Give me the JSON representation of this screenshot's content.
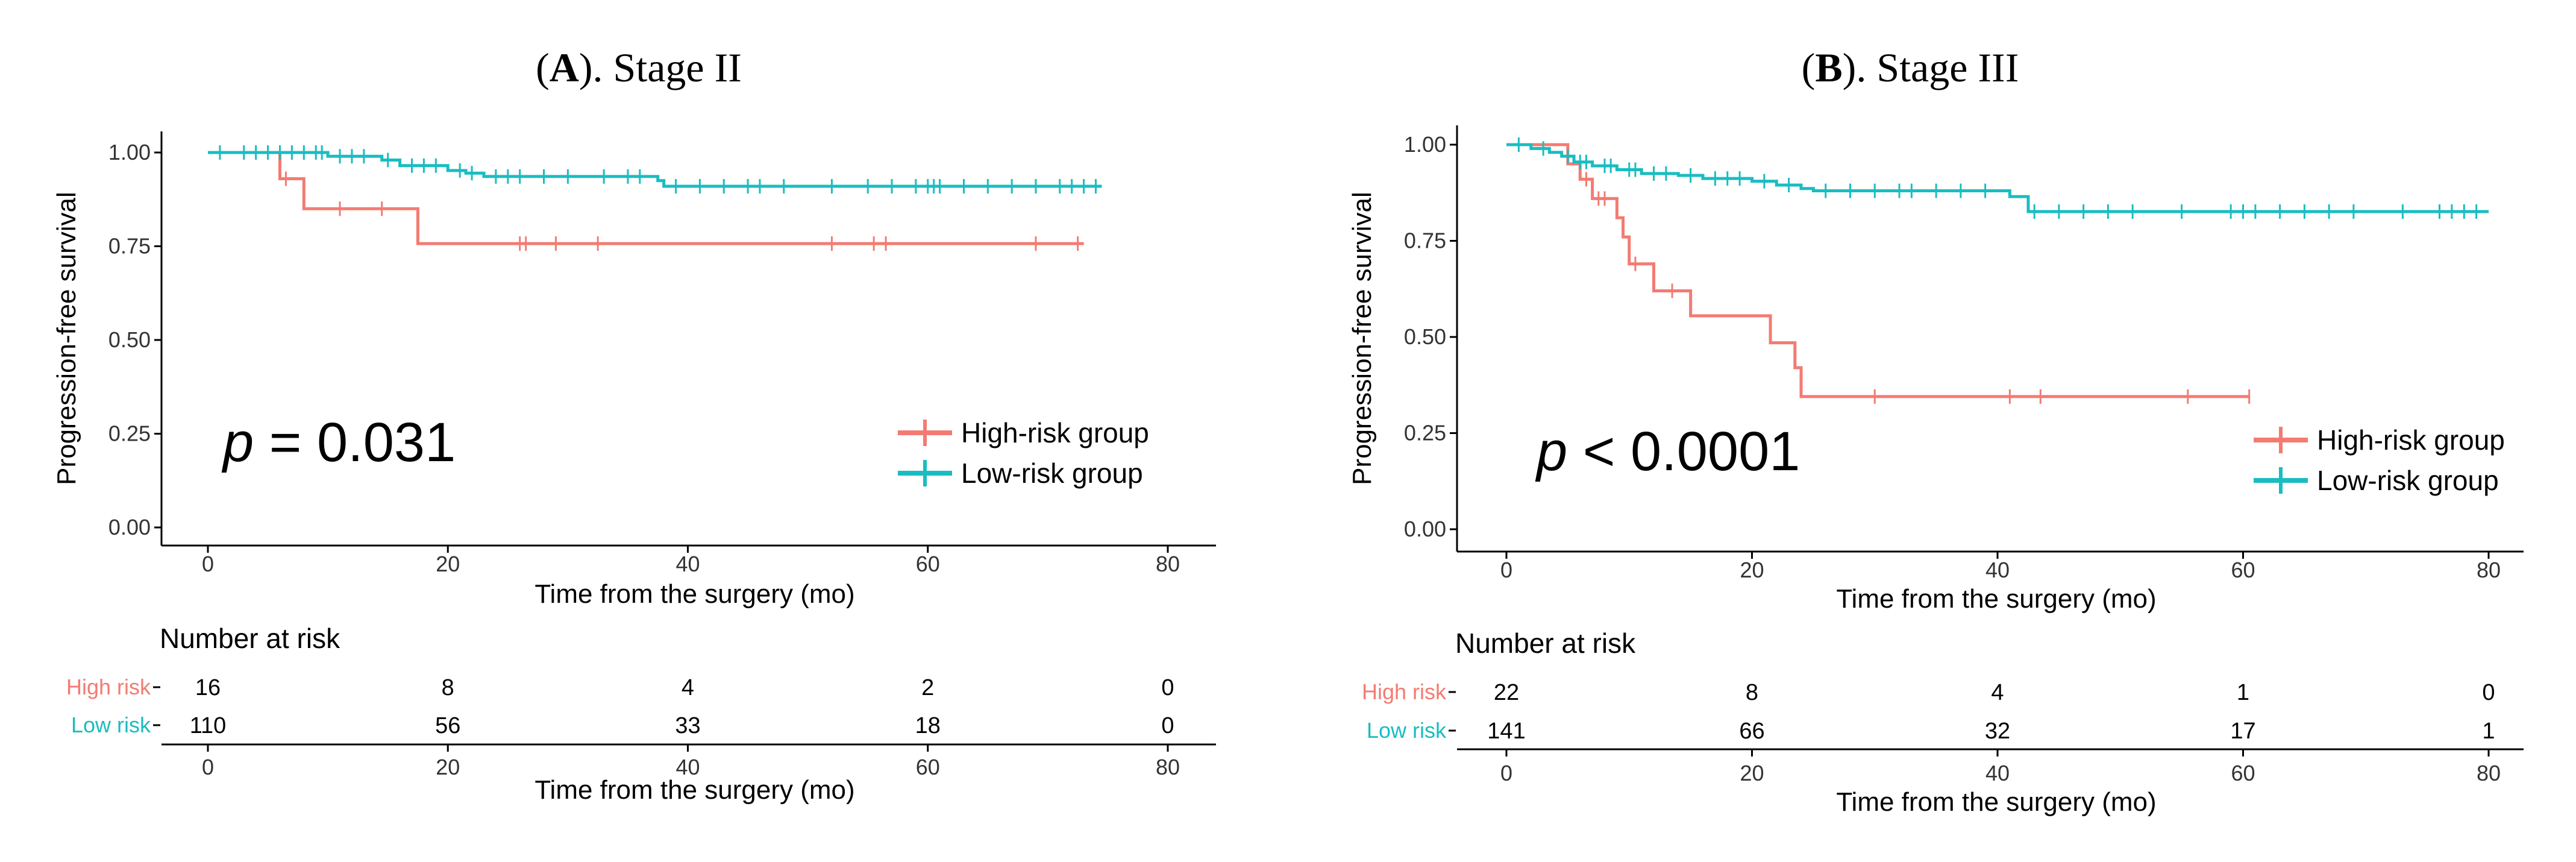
{
  "colors": {
    "high": "#f37b72",
    "low": "#19bdc1"
  },
  "chart_data": [
    {
      "type": "line",
      "subtype": "kaplan-meier",
      "title_letter": "A",
      "title_rest": ". Stage II",
      "title_open": "(",
      "title_close": ")",
      "xlabel": "Time from the surgery (mo)",
      "ylabel": "Progression-free survival",
      "xlim": [
        0,
        80
      ],
      "ylim": [
        0,
        1
      ],
      "xticks": [
        0,
        20,
        40,
        60,
        80
      ],
      "yticks": [
        0,
        0.25,
        0.5,
        0.75,
        1.0
      ],
      "ytick_labels": [
        "0.00",
        "0.25",
        "0.50",
        "0.75",
        "1.00"
      ],
      "pvalue_symbol": "p",
      "pvalue_text": " = 0.031",
      "legend": {
        "high": "High-risk group",
        "low": "Low-risk group"
      },
      "series": [
        {
          "name": "High-risk group",
          "steps": [
            [
              0,
              1.0
            ],
            [
              6,
              0.93
            ],
            [
              8,
              0.85
            ],
            [
              17.5,
              0.757
            ],
            [
              73,
              0.757
            ]
          ],
          "censors": [
            [
              6.5,
              0.93
            ],
            [
              11,
              0.85
            ],
            [
              14.5,
              0.85
            ],
            [
              26,
              0.757
            ],
            [
              26.5,
              0.757
            ],
            [
              29,
              0.757
            ],
            [
              32.5,
              0.757
            ],
            [
              52,
              0.757
            ],
            [
              55.5,
              0.757
            ],
            [
              56.5,
              0.757
            ],
            [
              69,
              0.757
            ],
            [
              72.5,
              0.757
            ]
          ]
        },
        {
          "name": "Low-risk group",
          "steps": [
            [
              0,
              1.0
            ],
            [
              10,
              0.99
            ],
            [
              14.5,
              0.98
            ],
            [
              16,
              0.965
            ],
            [
              20,
              0.952
            ],
            [
              21.5,
              0.945
            ],
            [
              23,
              0.936
            ],
            [
              37.5,
              0.925
            ],
            [
              38,
              0.91
            ],
            [
              74.5,
              0.91
            ]
          ],
          "censors": [
            [
              1,
              1.0
            ],
            [
              3,
              1.0
            ],
            [
              4,
              1.0
            ],
            [
              5,
              1.0
            ],
            [
              6,
              1.0
            ],
            [
              7,
              1.0
            ],
            [
              8,
              1.0
            ],
            [
              9,
              1.0
            ],
            [
              9.5,
              1.0
            ],
            [
              11,
              0.99
            ],
            [
              12,
              0.99
            ],
            [
              13,
              0.99
            ],
            [
              15,
              0.98
            ],
            [
              17,
              0.965
            ],
            [
              18,
              0.965
            ],
            [
              19,
              0.965
            ],
            [
              21,
              0.952
            ],
            [
              22,
              0.945
            ],
            [
              24,
              0.936
            ],
            [
              25,
              0.936
            ],
            [
              26,
              0.936
            ],
            [
              28,
              0.936
            ],
            [
              30,
              0.936
            ],
            [
              33,
              0.936
            ],
            [
              35,
              0.936
            ],
            [
              36,
              0.936
            ],
            [
              39,
              0.91
            ],
            [
              41,
              0.91
            ],
            [
              43,
              0.91
            ],
            [
              45,
              0.91
            ],
            [
              46,
              0.91
            ],
            [
              48,
              0.91
            ],
            [
              52,
              0.91
            ],
            [
              55,
              0.91
            ],
            [
              57,
              0.91
            ],
            [
              59,
              0.91
            ],
            [
              60,
              0.91
            ],
            [
              60.5,
              0.91
            ],
            [
              61,
              0.91
            ],
            [
              63,
              0.91
            ],
            [
              65,
              0.91
            ],
            [
              67,
              0.91
            ],
            [
              69,
              0.91
            ],
            [
              71,
              0.91
            ],
            [
              72,
              0.91
            ],
            [
              73,
              0.91
            ],
            [
              74,
              0.91
            ]
          ]
        }
      ],
      "risk_table": {
        "title": "Number at risk",
        "xlabel": "Time from the surgery (mo)",
        "rows": [
          {
            "label": "High risk",
            "values": [
              "16",
              "8",
              "4",
              "2",
              "0"
            ]
          },
          {
            "label": "Low risk",
            "values": [
              "110",
              "56",
              "33",
              "18",
              "0"
            ]
          }
        ]
      }
    },
    {
      "type": "line",
      "subtype": "kaplan-meier",
      "title_letter": "B",
      "title_rest": ". Stage III",
      "title_open": "(",
      "title_close": ")",
      "xlabel": "Time from the surgery (mo)",
      "ylabel": "Progression-free survival",
      "xlim": [
        0,
        80
      ],
      "ylim": [
        0,
        1
      ],
      "xticks": [
        0,
        20,
        40,
        60,
        80
      ],
      "yticks": [
        0,
        0.25,
        0.5,
        0.75,
        1.0
      ],
      "ytick_labels": [
        "0.00",
        "0.25",
        "0.50",
        "0.75",
        "1.00"
      ],
      "pvalue_symbol": "p",
      "pvalue_text": " < 0.0001",
      "legend": {
        "high": "High-risk group",
        "low": "Low-risk group"
      },
      "series": [
        {
          "name": "High-risk group",
          "steps": [
            [
              0,
              1.0
            ],
            [
              5,
              0.95
            ],
            [
              6,
              0.91
            ],
            [
              7,
              0.86
            ],
            [
              9,
              0.81
            ],
            [
              9.5,
              0.76
            ],
            [
              10,
              0.69
            ],
            [
              12,
              0.62
            ],
            [
              15,
              0.555
            ],
            [
              21.5,
              0.485
            ],
            [
              23.5,
              0.42
            ],
            [
              24,
              0.345
            ],
            [
              60.5,
              0.345
            ]
          ],
          "censors": [
            [
              6.5,
              0.91
            ],
            [
              7.5,
              0.86
            ],
            [
              8,
              0.86
            ],
            [
              10.5,
              0.69
            ],
            [
              13.5,
              0.62
            ],
            [
              30,
              0.345
            ],
            [
              41,
              0.345
            ],
            [
              43.5,
              0.345
            ],
            [
              55.5,
              0.345
            ],
            [
              60.5,
              0.345
            ]
          ]
        },
        {
          "name": "Low-risk group",
          "steps": [
            [
              0,
              1.0
            ],
            [
              2,
              0.99
            ],
            [
              3.5,
              0.98
            ],
            [
              4.5,
              0.97
            ],
            [
              5.5,
              0.955
            ],
            [
              7,
              0.945
            ],
            [
              9,
              0.935
            ],
            [
              11,
              0.925
            ],
            [
              14,
              0.92
            ],
            [
              16,
              0.912
            ],
            [
              20,
              0.905
            ],
            [
              22,
              0.895
            ],
            [
              24,
              0.886
            ],
            [
              25,
              0.88
            ],
            [
              41,
              0.865
            ],
            [
              42.5,
              0.826
            ],
            [
              80,
              0.826
            ]
          ],
          "censors": [
            [
              1,
              1.0
            ],
            [
              3,
              0.99
            ],
            [
              5,
              0.97
            ],
            [
              6,
              0.955
            ],
            [
              6.5,
              0.955
            ],
            [
              8,
              0.945
            ],
            [
              8.5,
              0.945
            ],
            [
              10,
              0.935
            ],
            [
              10.5,
              0.935
            ],
            [
              12,
              0.925
            ],
            [
              13,
              0.925
            ],
            [
              15,
              0.92
            ],
            [
              17,
              0.912
            ],
            [
              18,
              0.912
            ],
            [
              19,
              0.912
            ],
            [
              21,
              0.905
            ],
            [
              23,
              0.895
            ],
            [
              26,
              0.88
            ],
            [
              28,
              0.88
            ],
            [
              30,
              0.88
            ],
            [
              32,
              0.88
            ],
            [
              33,
              0.88
            ],
            [
              35,
              0.88
            ],
            [
              37,
              0.88
            ],
            [
              39,
              0.88
            ],
            [
              43,
              0.826
            ],
            [
              45,
              0.826
            ],
            [
              47,
              0.826
            ],
            [
              49,
              0.826
            ],
            [
              51,
              0.826
            ],
            [
              55,
              0.826
            ],
            [
              59,
              0.826
            ],
            [
              60,
              0.826
            ],
            [
              61,
              0.826
            ],
            [
              63,
              0.826
            ],
            [
              65,
              0.826
            ],
            [
              67,
              0.826
            ],
            [
              69,
              0.826
            ],
            [
              73,
              0.826
            ],
            [
              76,
              0.826
            ],
            [
              77,
              0.826
            ],
            [
              78,
              0.826
            ],
            [
              79,
              0.826
            ]
          ]
        }
      ],
      "risk_table": {
        "title": "Number at risk",
        "xlabel": "Time from the surgery (mo)",
        "rows": [
          {
            "label": "High risk",
            "values": [
              "22",
              "8",
              "4",
              "1",
              "0"
            ]
          },
          {
            "label": "Low risk",
            "values": [
              "141",
              "66",
              "32",
              "17",
              "1"
            ]
          }
        ]
      }
    }
  ]
}
